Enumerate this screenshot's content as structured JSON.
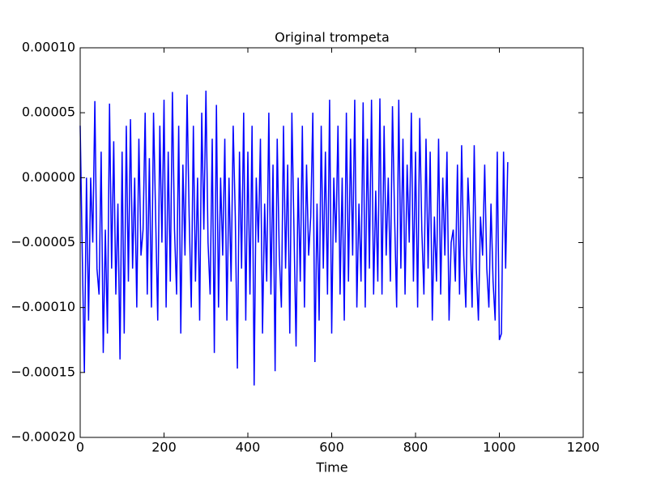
{
  "chart_data": {
    "type": "line",
    "title": "Original trompeta",
    "xlabel": "Time",
    "color": "#0000ff",
    "x": [
      0,
      5,
      10,
      15,
      20,
      25,
      30,
      35,
      40,
      45,
      50,
      55,
      60,
      65,
      70,
      75,
      80,
      85,
      90,
      95,
      100,
      105,
      110,
      115,
      120,
      125,
      130,
      135,
      140,
      145,
      150,
      155,
      160,
      165,
      170,
      175,
      180,
      185,
      190,
      195,
      200,
      205,
      210,
      215,
      220,
      225,
      230,
      235,
      240,
      245,
      250,
      255,
      260,
      265,
      270,
      275,
      280,
      285,
      290,
      295,
      300,
      305,
      310,
      315,
      320,
      325,
      330,
      335,
      340,
      345,
      350,
      355,
      360,
      365,
      370,
      375,
      380,
      385,
      390,
      395,
      400,
      405,
      410,
      415,
      420,
      425,
      430,
      435,
      440,
      445,
      450,
      455,
      460,
      465,
      470,
      475,
      480,
      485,
      490,
      495,
      500,
      505,
      510,
      515,
      520,
      525,
      530,
      535,
      540,
      545,
      550,
      555,
      560,
      565,
      570,
      575,
      580,
      585,
      590,
      595,
      600,
      605,
      610,
      615,
      620,
      625,
      630,
      635,
      640,
      645,
      650,
      655,
      660,
      665,
      670,
      675,
      680,
      685,
      690,
      695,
      700,
      705,
      710,
      715,
      720,
      725,
      730,
      735,
      740,
      745,
      750,
      755,
      760,
      765,
      770,
      775,
      780,
      785,
      790,
      795,
      800,
      805,
      810,
      815,
      820,
      825,
      830,
      835,
      840,
      845,
      850,
      855,
      860,
      865,
      870,
      875,
      880,
      885,
      890,
      895,
      900,
      905,
      910,
      915,
      920,
      925,
      930,
      935,
      940,
      945,
      950,
      955,
      960,
      965,
      970,
      975,
      980,
      985,
      990,
      995,
      1000,
      1005,
      1010,
      1015,
      1020
    ],
    "values": [
      4e-05,
      -6e-05,
      -0.00015,
      0.0,
      -0.00011,
      0.0,
      -5e-05,
      5.9e-05,
      -7e-05,
      -9e-05,
      2e-05,
      -0.000135,
      -4e-05,
      -0.00012,
      5.7e-05,
      -7e-05,
      2.8e-05,
      -9e-05,
      -2e-05,
      -0.00014,
      2e-05,
      -0.00012,
      4e-05,
      -8e-05,
      4.5e-05,
      -7e-05,
      0.0,
      -0.0001,
      3e-05,
      -6e-05,
      -4e-05,
      5e-05,
      -9e-05,
      1.5e-05,
      -0.0001,
      5e-05,
      -3e-05,
      -0.00011,
      4e-05,
      -5e-05,
      6e-05,
      -0.0001,
      2e-05,
      -8e-05,
      6.6e-05,
      -4e-05,
      -9e-05,
      4e-05,
      -0.00012,
      1e-05,
      -6e-05,
      6.4e-05,
      -3e-05,
      -0.0001,
      4e-05,
      -8e-05,
      0.0,
      -0.00011,
      5e-05,
      -4e-05,
      6.7e-05,
      -5e-05,
      -9e-05,
      3e-05,
      -0.000135,
      5.6e-05,
      -0.0001,
      0.0,
      -6e-05,
      3e-05,
      -0.00011,
      0.0,
      -8e-05,
      4e-05,
      -3e-05,
      -0.000147,
      2e-05,
      -7e-05,
      5e-05,
      -0.00011,
      2e-05,
      -9e-05,
      4e-05,
      -0.00016,
      0.0,
      -5e-05,
      3e-05,
      -0.00012,
      -2e-05,
      -8e-05,
      5e-05,
      -9e-05,
      1e-05,
      -0.000149,
      3e-05,
      -6e-05,
      -0.0001,
      4e-05,
      -7e-05,
      1e-05,
      -0.00012,
      5e-05,
      -4e-05,
      -0.00013,
      0.0,
      -8e-05,
      4e-05,
      -0.0001,
      1e-05,
      -6e-05,
      -3e-05,
      5e-05,
      -0.000142,
      -2e-05,
      -0.00011,
      4e-05,
      -7e-05,
      2e-05,
      -9e-05,
      6e-05,
      -0.00012,
      0.0,
      -5e-05,
      4e-05,
      -9e-05,
      0.0,
      -0.00011,
      5e-05,
      -8e-05,
      3e-05,
      -6e-05,
      6e-05,
      -0.0001,
      -2e-05,
      -8e-05,
      5.8e-05,
      -0.0001,
      3e-05,
      -7e-05,
      6e-05,
      -9e-05,
      -1e-05,
      -8e-05,
      6.1e-05,
      -9e-05,
      4e-05,
      -6e-05,
      0.0,
      -8e-05,
      5.5e-05,
      -3e-05,
      -0.0001,
      6e-05,
      -7e-05,
      3e-05,
      -9e-05,
      1e-05,
      -5e-05,
      5e-05,
      -8e-05,
      2e-05,
      -0.0001,
      4.6e-05,
      -4e-05,
      -9e-05,
      3e-05,
      -7e-05,
      2e-05,
      -0.00011,
      -3e-05,
      -8e-05,
      3e-05,
      -9e-05,
      0.0,
      -6e-05,
      2e-05,
      -0.00011,
      -5e-05,
      -4e-05,
      -8e-05,
      1e-05,
      -9e-05,
      2.5e-05,
      -6e-05,
      -0.0001,
      0.0,
      -4e-05,
      -0.0001,
      2.5e-05,
      -7e-05,
      -0.00011,
      -3e-05,
      -6e-05,
      1e-05,
      -7e-05,
      -0.0001,
      -2e-05,
      -8e-05,
      -0.00011,
      2e-05,
      -0.000125,
      -0.00012,
      2e-05,
      -7e-05,
      1.2e-05
    ],
    "xlim": [
      0,
      1200
    ],
    "xticks": [
      0,
      200,
      400,
      600,
      800,
      1000,
      1200
    ],
    "ylim": [
      -0.0002,
      0.0001
    ],
    "yticks": [
      {
        "value": -0.0002,
        "label": "−0.00020"
      },
      {
        "value": -0.00015,
        "label": "−0.00015"
      },
      {
        "value": -0.0001,
        "label": "−0.00010"
      },
      {
        "value": -5e-05,
        "label": "−0.00005"
      },
      {
        "value": 0,
        "label": "0.00000"
      },
      {
        "value": 5e-05,
        "label": "0.00005"
      },
      {
        "value": 0.0001,
        "label": "0.00010"
      }
    ]
  }
}
